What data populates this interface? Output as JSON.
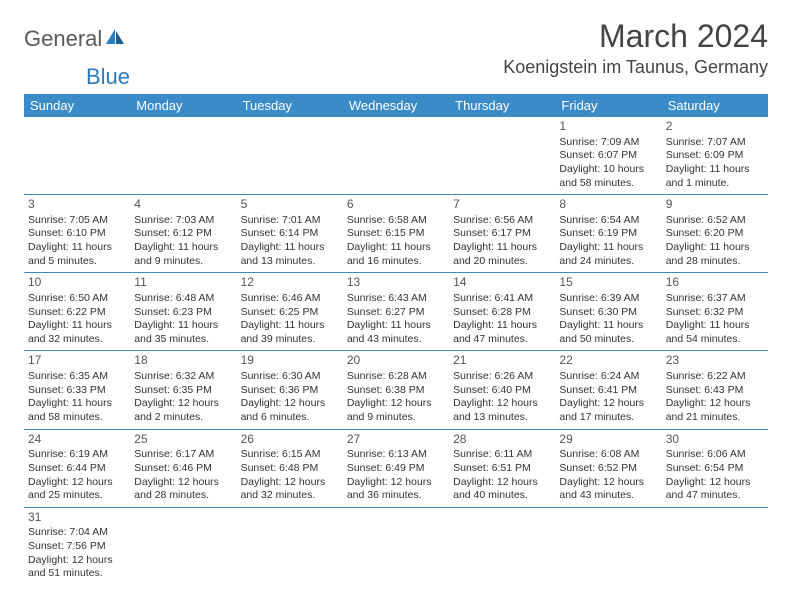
{
  "logo": {
    "part1": "General",
    "part2": "Blue"
  },
  "title": "March 2024",
  "location": "Koenigstein im Taunus, Germany",
  "colors": {
    "header_bg": "#3b8bc9",
    "header_text": "#ffffff",
    "border": "#3b8bc9",
    "body_text": "#333333",
    "logo_gray": "#5a5a5a",
    "logo_blue": "#2b7bbf"
  },
  "weekdays": [
    "Sunday",
    "Monday",
    "Tuesday",
    "Wednesday",
    "Thursday",
    "Friday",
    "Saturday"
  ],
  "weeks": [
    [
      null,
      null,
      null,
      null,
      null,
      {
        "d": "1",
        "sr": "Sunrise: 7:09 AM",
        "ss": "Sunset: 6:07 PM",
        "dl1": "Daylight: 10 hours",
        "dl2": "and 58 minutes."
      },
      {
        "d": "2",
        "sr": "Sunrise: 7:07 AM",
        "ss": "Sunset: 6:09 PM",
        "dl1": "Daylight: 11 hours",
        "dl2": "and 1 minute."
      }
    ],
    [
      {
        "d": "3",
        "sr": "Sunrise: 7:05 AM",
        "ss": "Sunset: 6:10 PM",
        "dl1": "Daylight: 11 hours",
        "dl2": "and 5 minutes."
      },
      {
        "d": "4",
        "sr": "Sunrise: 7:03 AM",
        "ss": "Sunset: 6:12 PM",
        "dl1": "Daylight: 11 hours",
        "dl2": "and 9 minutes."
      },
      {
        "d": "5",
        "sr": "Sunrise: 7:01 AM",
        "ss": "Sunset: 6:14 PM",
        "dl1": "Daylight: 11 hours",
        "dl2": "and 13 minutes."
      },
      {
        "d": "6",
        "sr": "Sunrise: 6:58 AM",
        "ss": "Sunset: 6:15 PM",
        "dl1": "Daylight: 11 hours",
        "dl2": "and 16 minutes."
      },
      {
        "d": "7",
        "sr": "Sunrise: 6:56 AM",
        "ss": "Sunset: 6:17 PM",
        "dl1": "Daylight: 11 hours",
        "dl2": "and 20 minutes."
      },
      {
        "d": "8",
        "sr": "Sunrise: 6:54 AM",
        "ss": "Sunset: 6:19 PM",
        "dl1": "Daylight: 11 hours",
        "dl2": "and 24 minutes."
      },
      {
        "d": "9",
        "sr": "Sunrise: 6:52 AM",
        "ss": "Sunset: 6:20 PM",
        "dl1": "Daylight: 11 hours",
        "dl2": "and 28 minutes."
      }
    ],
    [
      {
        "d": "10",
        "sr": "Sunrise: 6:50 AM",
        "ss": "Sunset: 6:22 PM",
        "dl1": "Daylight: 11 hours",
        "dl2": "and 32 minutes."
      },
      {
        "d": "11",
        "sr": "Sunrise: 6:48 AM",
        "ss": "Sunset: 6:23 PM",
        "dl1": "Daylight: 11 hours",
        "dl2": "and 35 minutes."
      },
      {
        "d": "12",
        "sr": "Sunrise: 6:46 AM",
        "ss": "Sunset: 6:25 PM",
        "dl1": "Daylight: 11 hours",
        "dl2": "and 39 minutes."
      },
      {
        "d": "13",
        "sr": "Sunrise: 6:43 AM",
        "ss": "Sunset: 6:27 PM",
        "dl1": "Daylight: 11 hours",
        "dl2": "and 43 minutes."
      },
      {
        "d": "14",
        "sr": "Sunrise: 6:41 AM",
        "ss": "Sunset: 6:28 PM",
        "dl1": "Daylight: 11 hours",
        "dl2": "and 47 minutes."
      },
      {
        "d": "15",
        "sr": "Sunrise: 6:39 AM",
        "ss": "Sunset: 6:30 PM",
        "dl1": "Daylight: 11 hours",
        "dl2": "and 50 minutes."
      },
      {
        "d": "16",
        "sr": "Sunrise: 6:37 AM",
        "ss": "Sunset: 6:32 PM",
        "dl1": "Daylight: 11 hours",
        "dl2": "and 54 minutes."
      }
    ],
    [
      {
        "d": "17",
        "sr": "Sunrise: 6:35 AM",
        "ss": "Sunset: 6:33 PM",
        "dl1": "Daylight: 11 hours",
        "dl2": "and 58 minutes."
      },
      {
        "d": "18",
        "sr": "Sunrise: 6:32 AM",
        "ss": "Sunset: 6:35 PM",
        "dl1": "Daylight: 12 hours",
        "dl2": "and 2 minutes."
      },
      {
        "d": "19",
        "sr": "Sunrise: 6:30 AM",
        "ss": "Sunset: 6:36 PM",
        "dl1": "Daylight: 12 hours",
        "dl2": "and 6 minutes."
      },
      {
        "d": "20",
        "sr": "Sunrise: 6:28 AM",
        "ss": "Sunset: 6:38 PM",
        "dl1": "Daylight: 12 hours",
        "dl2": "and 9 minutes."
      },
      {
        "d": "21",
        "sr": "Sunrise: 6:26 AM",
        "ss": "Sunset: 6:40 PM",
        "dl1": "Daylight: 12 hours",
        "dl2": "and 13 minutes."
      },
      {
        "d": "22",
        "sr": "Sunrise: 6:24 AM",
        "ss": "Sunset: 6:41 PM",
        "dl1": "Daylight: 12 hours",
        "dl2": "and 17 minutes."
      },
      {
        "d": "23",
        "sr": "Sunrise: 6:22 AM",
        "ss": "Sunset: 6:43 PM",
        "dl1": "Daylight: 12 hours",
        "dl2": "and 21 minutes."
      }
    ],
    [
      {
        "d": "24",
        "sr": "Sunrise: 6:19 AM",
        "ss": "Sunset: 6:44 PM",
        "dl1": "Daylight: 12 hours",
        "dl2": "and 25 minutes."
      },
      {
        "d": "25",
        "sr": "Sunrise: 6:17 AM",
        "ss": "Sunset: 6:46 PM",
        "dl1": "Daylight: 12 hours",
        "dl2": "and 28 minutes."
      },
      {
        "d": "26",
        "sr": "Sunrise: 6:15 AM",
        "ss": "Sunset: 6:48 PM",
        "dl1": "Daylight: 12 hours",
        "dl2": "and 32 minutes."
      },
      {
        "d": "27",
        "sr": "Sunrise: 6:13 AM",
        "ss": "Sunset: 6:49 PM",
        "dl1": "Daylight: 12 hours",
        "dl2": "and 36 minutes."
      },
      {
        "d": "28",
        "sr": "Sunrise: 6:11 AM",
        "ss": "Sunset: 6:51 PM",
        "dl1": "Daylight: 12 hours",
        "dl2": "and 40 minutes."
      },
      {
        "d": "29",
        "sr": "Sunrise: 6:08 AM",
        "ss": "Sunset: 6:52 PM",
        "dl1": "Daylight: 12 hours",
        "dl2": "and 43 minutes."
      },
      {
        "d": "30",
        "sr": "Sunrise: 6:06 AM",
        "ss": "Sunset: 6:54 PM",
        "dl1": "Daylight: 12 hours",
        "dl2": "and 47 minutes."
      }
    ],
    [
      {
        "d": "31",
        "sr": "Sunrise: 7:04 AM",
        "ss": "Sunset: 7:56 PM",
        "dl1": "Daylight: 12 hours",
        "dl2": "and 51 minutes."
      },
      null,
      null,
      null,
      null,
      null,
      null
    ]
  ]
}
